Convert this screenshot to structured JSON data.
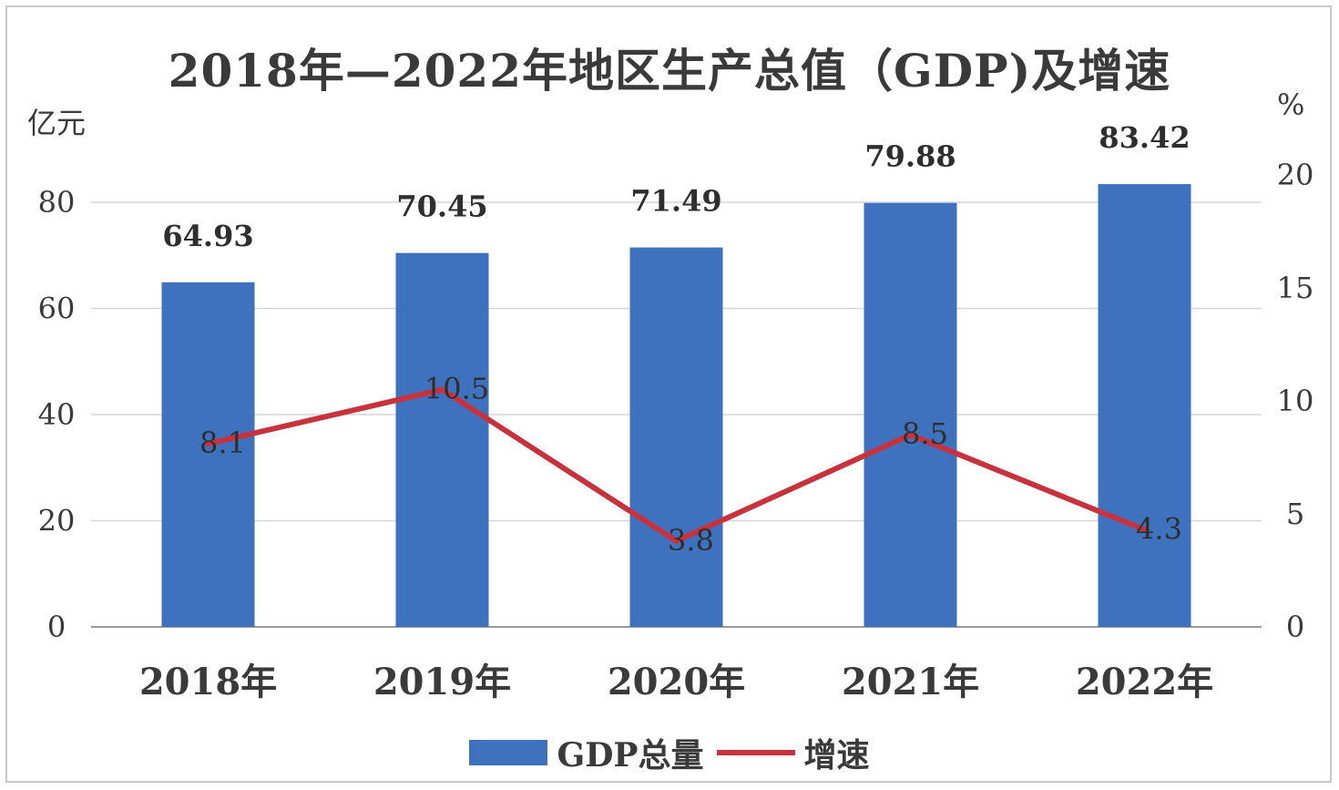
{
  "chart_data": {
    "type": "bar",
    "title": "2018年—2022年地区生产总值（GDP)及增速",
    "left_unit": "亿元",
    "right_unit": "%",
    "categories": [
      "2018年",
      "2019年",
      "2020年",
      "2021年",
      "2022年"
    ],
    "series": [
      {
        "name": "GDP总量",
        "type": "bar",
        "axis": "left",
        "values": [
          64.93,
          70.45,
          71.49,
          79.88,
          83.42
        ],
        "labels": [
          "64.93",
          "70.45",
          "71.49",
          "79.88",
          "83.42"
        ],
        "color": "#3f72be"
      },
      {
        "name": "增速",
        "type": "line",
        "axis": "right",
        "values": [
          8.1,
          10.5,
          3.8,
          8.5,
          4.3
        ],
        "labels": [
          "8.1",
          "10.5",
          "3.8",
          "8.5",
          "4.3"
        ],
        "color": "#c8323d"
      }
    ],
    "y_left": {
      "ylim": [
        0,
        80
      ],
      "ticks": [
        "0",
        "20",
        "40",
        "60",
        "80"
      ]
    },
    "y_right": {
      "ylim": [
        0,
        20
      ],
      "ticks": [
        "0",
        "5",
        "10",
        "15",
        "20"
      ]
    },
    "grid": true,
    "legend_position": "bottom"
  }
}
